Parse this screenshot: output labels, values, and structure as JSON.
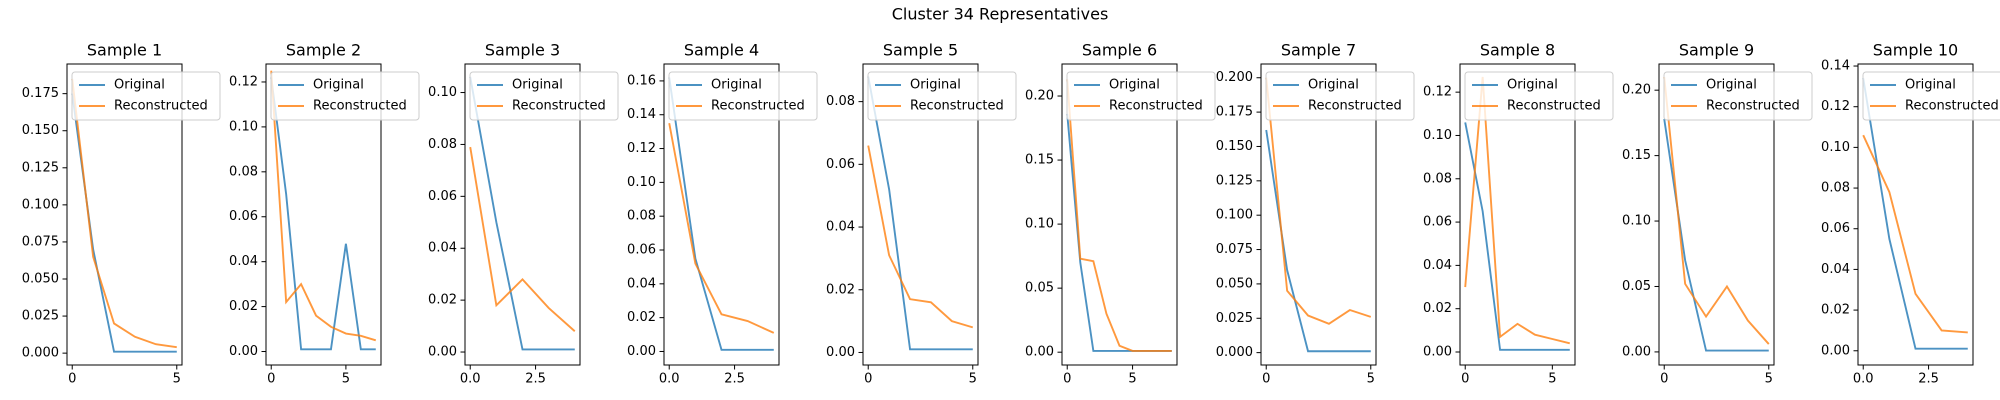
{
  "title": "Cluster 34 Representatives",
  "chart_data": [
    {
      "type": "line",
      "title": "Sample 1",
      "x": [
        0,
        1,
        2,
        3,
        4,
        5
      ],
      "legend": "upper right",
      "series": [
        {
          "name": "Original",
          "color": "#1f77b4",
          "values": [
            0.175,
            0.07,
            0.001,
            0.001,
            0.001,
            0.001
          ]
        },
        {
          "name": "Reconstructed",
          "color": "#ff7f0e",
          "values": [
            0.185,
            0.065,
            0.02,
            0.011,
            0.006,
            0.004
          ]
        }
      ],
      "xlim": [
        -0.25,
        5.25
      ],
      "xticks": [
        0,
        5
      ],
      "ylim": [
        -0.008,
        0.195
      ],
      "yticks": [
        {
          "value": 0,
          "label": "0.000"
        },
        0.025,
        {
          "value": 0.05,
          "label": "0.050"
        },
        0.075,
        {
          "value": 0.1,
          "label": "0.100"
        },
        0.125,
        {
          "value": 0.15,
          "label": "0.150"
        },
        0.175
      ]
    },
    {
      "type": "line",
      "title": "Sample 2",
      "x": [
        0,
        1,
        2,
        3,
        4,
        5,
        6,
        7
      ],
      "legend": "upper right",
      "series": [
        {
          "name": "Original",
          "color": "#1f77b4",
          "values": [
            0.122,
            0.07,
            0.001,
            0.001,
            0.001,
            0.048,
            0.001,
            0.001
          ]
        },
        {
          "name": "Reconstructed",
          "color": "#ff7f0e",
          "values": [
            0.125,
            0.022,
            0.03,
            0.016,
            0.011,
            0.008,
            0.007,
            0.005
          ]
        }
      ],
      "xlim": [
        -0.35,
        7.35
      ],
      "xticks": [
        0,
        5
      ],
      "ylim": [
        -0.006,
        0.128
      ],
      "yticks": [
        {
          "value": 0,
          "label": "0.00"
        },
        0.02,
        0.04,
        0.06,
        0.08,
        {
          "value": 0.1,
          "label": "0.10"
        },
        0.12
      ]
    },
    {
      "type": "line",
      "title": "Sample 3",
      "x": [
        0,
        1,
        2,
        3,
        4
      ],
      "legend": "upper right",
      "series": [
        {
          "name": "Original",
          "color": "#1f77b4",
          "values": [
            0.106,
            0.05,
            0.001,
            0.001,
            0.001
          ]
        },
        {
          "name": "Reconstructed",
          "color": "#ff7f0e",
          "values": [
            0.079,
            0.018,
            0.028,
            0.017,
            0.008
          ]
        }
      ],
      "xlim": [
        -0.2,
        4.2
      ],
      "xticks": [
        {
          "value": 0,
          "label": "0.0"
        },
        2.5
      ],
      "ylim": [
        -0.005,
        0.111
      ],
      "yticks": [
        {
          "value": 0,
          "label": "0.00"
        },
        0.02,
        0.04,
        0.06,
        0.08,
        {
          "value": 0.1,
          "label": "0.10"
        }
      ]
    },
    {
      "type": "line",
      "title": "Sample 4",
      "x": [
        0,
        1,
        2,
        3,
        4
      ],
      "legend": "upper right",
      "series": [
        {
          "name": "Original",
          "color": "#1f77b4",
          "values": [
            0.162,
            0.055,
            0.001,
            0.001,
            0.001
          ]
        },
        {
          "name": "Reconstructed",
          "color": "#ff7f0e",
          "values": [
            0.135,
            0.052,
            0.022,
            0.018,
            0.011
          ]
        }
      ],
      "xlim": [
        -0.2,
        4.2
      ],
      "xticks": [
        {
          "value": 0,
          "label": "0.0"
        },
        2.5
      ],
      "ylim": [
        -0.008,
        0.17
      ],
      "yticks": [
        {
          "value": 0,
          "label": "0.00"
        },
        0.02,
        0.04,
        0.06,
        0.08,
        {
          "value": 0.1,
          "label": "0.10"
        },
        0.12,
        0.14,
        0.16
      ]
    },
    {
      "type": "line",
      "title": "Sample 5",
      "x": [
        0,
        1,
        2,
        3,
        4,
        5
      ],
      "legend": "upper right",
      "series": [
        {
          "name": "Original",
          "color": "#1f77b4",
          "values": [
            0.088,
            0.052,
            0.001,
            0.001,
            0.001,
            0.001
          ]
        },
        {
          "name": "Reconstructed",
          "color": "#ff7f0e",
          "values": [
            0.066,
            0.031,
            0.017,
            0.016,
            0.01,
            0.008
          ]
        }
      ],
      "xlim": [
        -0.25,
        5.25
      ],
      "xticks": [
        0,
        5
      ],
      "ylim": [
        -0.004,
        0.092
      ],
      "yticks": [
        {
          "value": 0,
          "label": "0.00"
        },
        0.02,
        0.04,
        0.06,
        0.08
      ]
    },
    {
      "type": "line",
      "title": "Sample 6",
      "x": [
        0,
        1,
        2,
        3,
        4,
        5,
        6,
        7,
        8
      ],
      "legend": "upper right",
      "series": [
        {
          "name": "Original",
          "color": "#1f77b4",
          "values": [
            0.186,
            0.07,
            0.001,
            0.001,
            0.001,
            0.001,
            0.001,
            0.001,
            0.001
          ]
        },
        {
          "name": "Reconstructed",
          "color": "#ff7f0e",
          "values": [
            0.213,
            0.073,
            0.071,
            0.03,
            0.005,
            0.001,
            0.001,
            0.001,
            0.001
          ]
        }
      ],
      "xlim": [
        -0.4,
        8.4
      ],
      "xticks": [
        0,
        5
      ],
      "ylim": [
        -0.01,
        0.225
      ],
      "yticks": [
        {
          "value": 0,
          "label": "0.00"
        },
        0.05,
        {
          "value": 0.1,
          "label": "0.10"
        },
        0.15,
        {
          "value": 0.2,
          "label": "0.20"
        }
      ]
    },
    {
      "type": "line",
      "title": "Sample 7",
      "x": [
        0,
        1,
        2,
        3,
        4,
        5
      ],
      "legend": "upper right",
      "series": [
        {
          "name": "Original",
          "color": "#1f77b4",
          "values": [
            0.162,
            0.06,
            0.001,
            0.001,
            0.001,
            0.001
          ]
        },
        {
          "name": "Reconstructed",
          "color": "#ff7f0e",
          "values": [
            0.2,
            0.045,
            0.027,
            0.021,
            0.031,
            0.026
          ]
        }
      ],
      "xlim": [
        -0.25,
        5.25
      ],
      "xticks": [
        0,
        5
      ],
      "ylim": [
        -0.009,
        0.21
      ],
      "yticks": [
        {
          "value": 0,
          "label": "0.000"
        },
        0.025,
        {
          "value": 0.05,
          "label": "0.050"
        },
        0.075,
        {
          "value": 0.1,
          "label": "0.100"
        },
        0.125,
        {
          "value": 0.15,
          "label": "0.150"
        },
        0.175,
        {
          "value": 0.2,
          "label": "0.200"
        }
      ]
    },
    {
      "type": "line",
      "title": "Sample 8",
      "x": [
        0,
        1,
        2,
        3,
        4,
        5,
        6
      ],
      "legend": "upper right",
      "series": [
        {
          "name": "Original",
          "color": "#1f77b4",
          "values": [
            0.106,
            0.065,
            0.001,
            0.001,
            0.001,
            0.001,
            0.001
          ]
        },
        {
          "name": "Reconstructed",
          "color": "#ff7f0e",
          "values": [
            0.03,
            0.127,
            0.007,
            0.013,
            0.008,
            0.006,
            0.004
          ]
        }
      ],
      "xlim": [
        -0.3,
        6.3
      ],
      "xticks": [
        0,
        5
      ],
      "ylim": [
        -0.006,
        0.133
      ],
      "yticks": [
        {
          "value": 0,
          "label": "0.00"
        },
        0.02,
        0.04,
        0.06,
        0.08,
        {
          "value": 0.1,
          "label": "0.10"
        },
        0.12
      ]
    },
    {
      "type": "line",
      "title": "Sample 9",
      "x": [
        0,
        1,
        2,
        3,
        4,
        5
      ],
      "legend": "upper right",
      "series": [
        {
          "name": "Original",
          "color": "#1f77b4",
          "values": [
            0.178,
            0.07,
            0.001,
            0.001,
            0.001,
            0.001
          ]
        },
        {
          "name": "Reconstructed",
          "color": "#ff7f0e",
          "values": [
            0.21,
            0.052,
            0.027,
            0.05,
            0.024,
            0.006
          ]
        }
      ],
      "xlim": [
        -0.25,
        5.25
      ],
      "xticks": [
        0,
        5
      ],
      "ylim": [
        -0.01,
        0.22
      ],
      "yticks": [
        {
          "value": 0,
          "label": "0.00"
        },
        0.05,
        {
          "value": 0.1,
          "label": "0.10"
        },
        0.15,
        {
          "value": 0.2,
          "label": "0.20"
        }
      ]
    },
    {
      "type": "line",
      "title": "Sample 10",
      "x": [
        0,
        1,
        2,
        3,
        4
      ],
      "legend": "upper right",
      "series": [
        {
          "name": "Original",
          "color": "#1f77b4",
          "values": [
            0.134,
            0.055,
            0.001,
            0.001,
            0.001
          ]
        },
        {
          "name": "Reconstructed",
          "color": "#ff7f0e",
          "values": [
            0.106,
            0.078,
            0.028,
            0.01,
            0.009
          ]
        }
      ],
      "xlim": [
        -0.2,
        4.2
      ],
      "xticks": [
        {
          "value": 0,
          "label": "0.0"
        },
        2.5
      ],
      "ylim": [
        -0.007,
        0.141
      ],
      "yticks": [
        {
          "value": 0,
          "label": "0.00"
        },
        0.02,
        0.04,
        0.06,
        0.08,
        {
          "value": 0.1,
          "label": "0.10"
        },
        0.12,
        0.14
      ]
    }
  ]
}
